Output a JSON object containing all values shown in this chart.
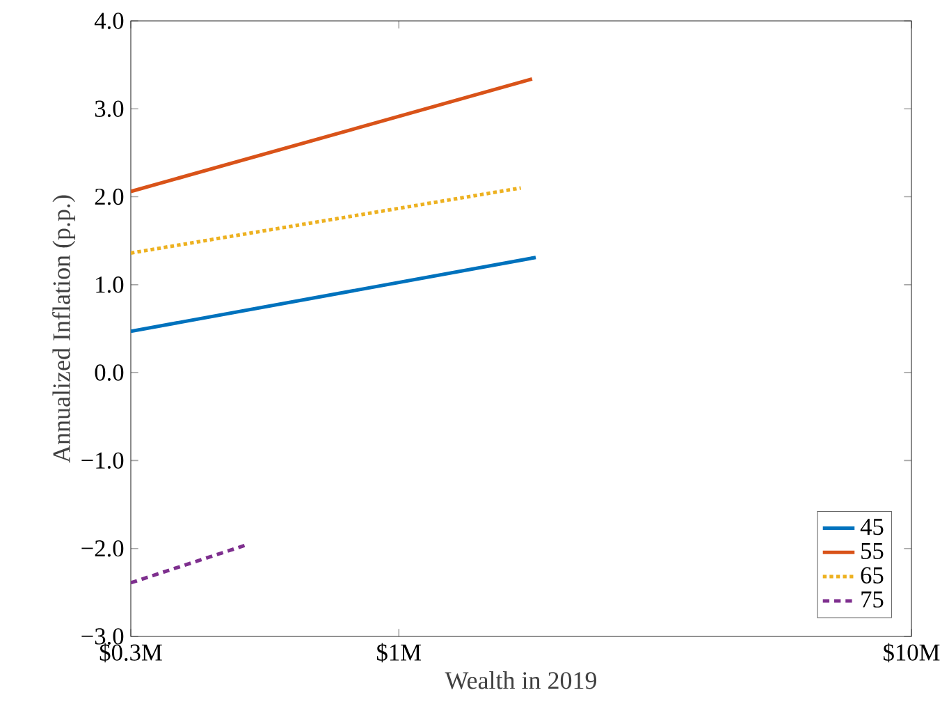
{
  "chart_data": {
    "type": "line",
    "xlabel": "Wealth in 2019",
    "ylabel": "Annualized Inflation (p.p.)",
    "log": "x",
    "grid": false,
    "legend": "bottom right",
    "xlim": [
      0.3,
      10
    ],
    "xticks": [
      {
        "value": 0.3,
        "label": "$0.3M"
      },
      {
        "value": 1,
        "label": "$1M"
      },
      {
        "value": 10,
        "label": "$10M"
      }
    ],
    "ylim": [
      -3,
      4
    ],
    "yticks": [
      {
        "value": -3,
        "label": "−3.0"
      },
      {
        "value": -2,
        "label": "−2.0"
      },
      {
        "value": -1,
        "label": "−1.0"
      },
      {
        "value": 0,
        "label": "0.0"
      },
      {
        "value": 1,
        "label": "1.0"
      },
      {
        "value": 2,
        "label": "2.0"
      },
      {
        "value": 3,
        "label": "3.0"
      },
      {
        "value": 4,
        "label": "4.0"
      }
    ],
    "series": [
      {
        "name": "45",
        "color": "#0072bd",
        "line_style": "solid",
        "x": [
          0.3,
          1.85
        ],
        "values": [
          0.47,
          1.31
        ]
      },
      {
        "name": "55",
        "color": "#d95319",
        "line_style": "solid",
        "x": [
          0.3,
          1.82
        ],
        "values": [
          2.06,
          3.34
        ]
      },
      {
        "name": "65",
        "color": "#edb120",
        "line_style": "dotted",
        "x": [
          0.3,
          1.73
        ],
        "values": [
          1.36,
          2.1
        ]
      },
      {
        "name": "75",
        "color": "#7e2f8e",
        "line_style": "dashed",
        "x": [
          0.3,
          0.51
        ],
        "values": [
          -2.39,
          -1.95
        ]
      }
    ]
  }
}
